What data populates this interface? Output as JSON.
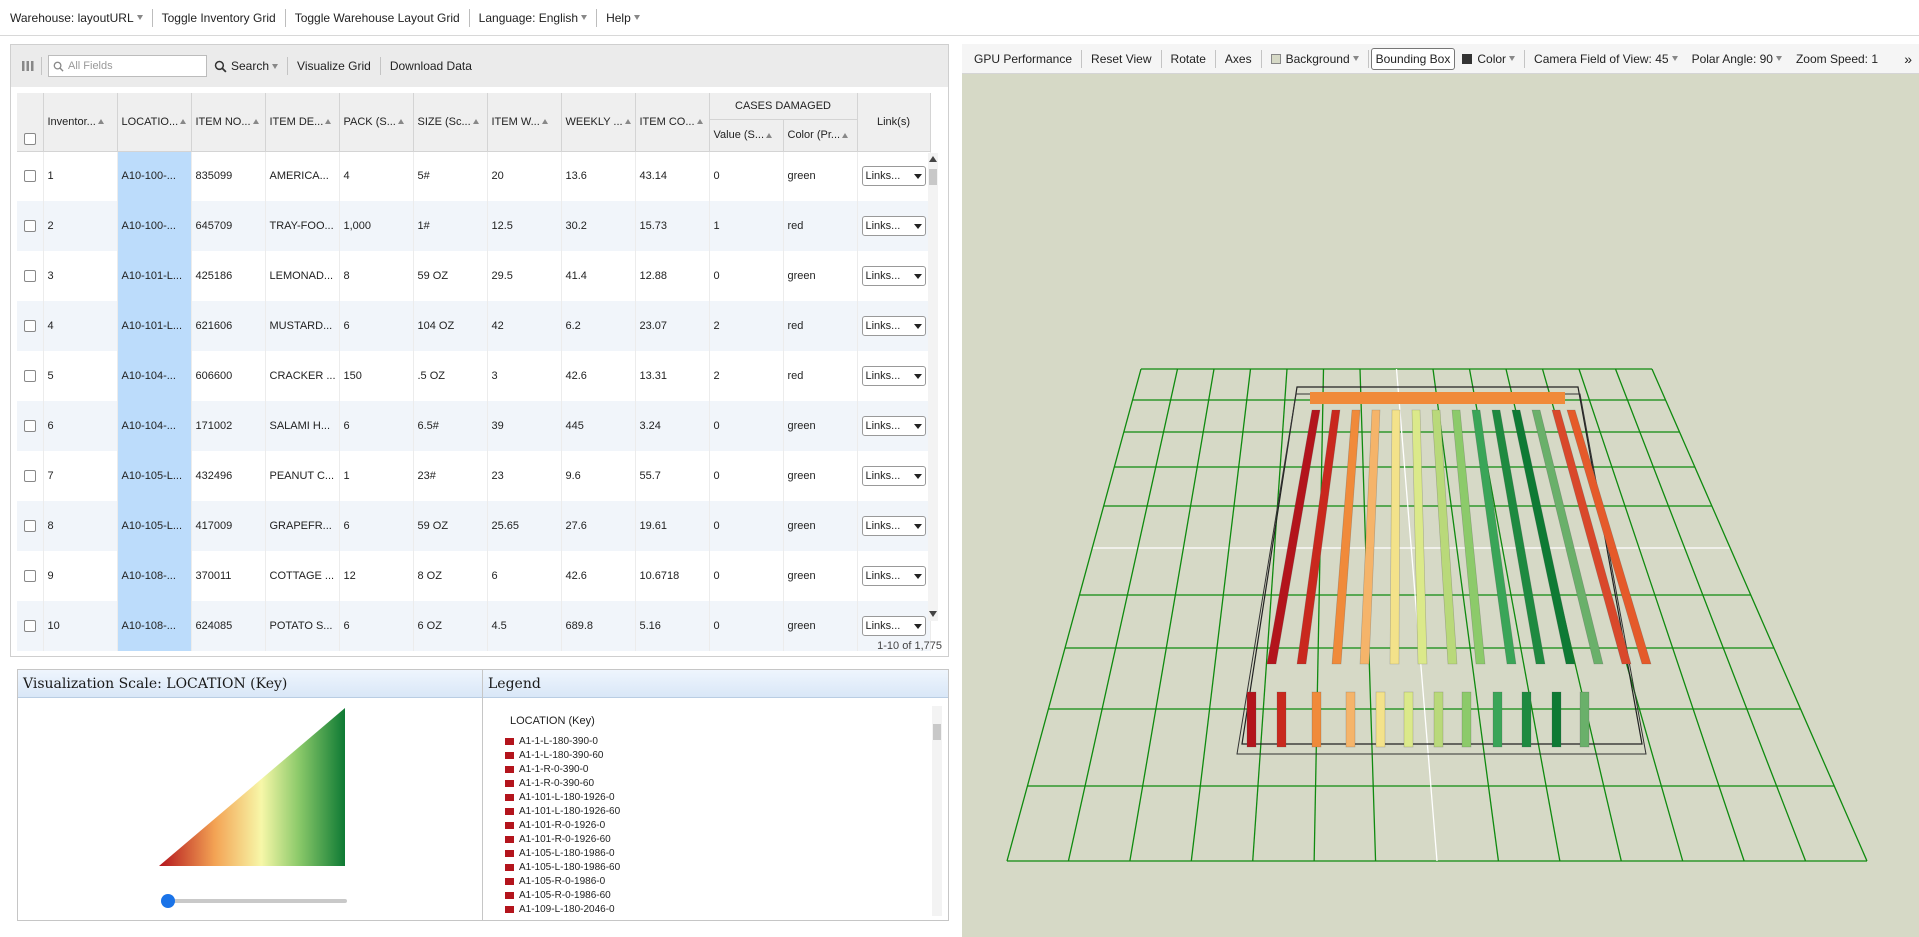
{
  "topbar": {
    "warehouse": "Warehouse: layoutURL",
    "toggle_inventory": "Toggle Inventory Grid",
    "toggle_layout": "Toggle Warehouse Layout Grid",
    "language": "Language: English",
    "help": "Help"
  },
  "grid_toolbar": {
    "search_placeholder": "All Fields",
    "search_label": "Search",
    "visualize": "Visualize Grid",
    "download": "Download Data"
  },
  "table": {
    "group_header": "CASES DAMAGED",
    "columns": [
      "Inventor...",
      "LOCATIO...",
      "ITEM NO...",
      "ITEM DE...",
      "PACK (S...",
      "SIZE (Sc...",
      "ITEM W...",
      "WEEKLY ...",
      "ITEM CO...",
      "Value (S...",
      "Color (Pr...",
      "Link(s)"
    ],
    "rows": [
      [
        "1",
        "A10-100-...",
        "835099",
        "AMERICA...",
        "4",
        "5#",
        "20",
        "13.6",
        "43.14",
        "0",
        "green",
        "Links..."
      ],
      [
        "2",
        "A10-100-...",
        "645709",
        "TRAY-FOO...",
        "1,000",
        "1#",
        "12.5",
        "30.2",
        "15.73",
        "1",
        "red",
        "Links..."
      ],
      [
        "3",
        "A10-101-L...",
        "425186",
        "LEMONAD...",
        "8",
        "59 OZ",
        "29.5",
        "41.4",
        "12.88",
        "0",
        "green",
        "Links..."
      ],
      [
        "4",
        "A10-101-L...",
        "621606",
        "MUSTARD...",
        "6",
        "104 OZ",
        "42",
        "6.2",
        "23.07",
        "2",
        "red",
        "Links..."
      ],
      [
        "5",
        "A10-104-...",
        "606600",
        "CRACKER ...",
        "150",
        ".5 OZ",
        "3",
        "42.6",
        "13.31",
        "2",
        "red",
        "Links..."
      ],
      [
        "6",
        "A10-104-...",
        "171002",
        "SALAMI H...",
        "6",
        "6.5#",
        "39",
        "445",
        "3.24",
        "0",
        "green",
        "Links..."
      ],
      [
        "7",
        "A10-105-L...",
        "432496",
        "PEANUT C...",
        "1",
        "23#",
        "23",
        "9.6",
        "55.7",
        "0",
        "green",
        "Links..."
      ],
      [
        "8",
        "A10-105-L...",
        "417009",
        "GRAPEFR...",
        "6",
        "59 OZ",
        "25.65",
        "27.6",
        "19.61",
        "0",
        "green",
        "Links..."
      ],
      [
        "9",
        "A10-108-...",
        "370011",
        "COTTAGE ...",
        "12",
        "8 OZ",
        "6",
        "42.6",
        "10.6718",
        "0",
        "green",
        "Links..."
      ],
      [
        "10",
        "A10-108-...",
        "624085",
        "POTATO S...",
        "6",
        "6 OZ",
        "4.5",
        "689.8",
        "5.16",
        "0",
        "green",
        "Links..."
      ]
    ],
    "footer": "1-10 of 1,775"
  },
  "scale_panel": {
    "title": "Visualization Scale: LOCATION (Key)"
  },
  "legend_panel": {
    "title": "Legend",
    "heading": "LOCATION (Key)",
    "items": [
      "A1-1-L-180-390-0",
      "A1-1-L-180-390-60",
      "A1-1-R-0-390-0",
      "A1-1-R-0-390-60",
      "A1-101-L-180-1926-0",
      "A1-101-L-180-1926-60",
      "A1-101-R-0-1926-0",
      "A1-101-R-0-1926-60",
      "A1-105-L-180-1986-0",
      "A1-105-L-180-1986-60",
      "A1-105-R-0-1986-0",
      "A1-105-R-0-1986-60",
      "A1-109-L-180-2046-0"
    ],
    "swatch_color": "#b3141c"
  },
  "viz_toolbar": {
    "gpu": "GPU Performance",
    "reset": "Reset View",
    "rotate": "Rotate",
    "axes": "Axes",
    "background": "Background",
    "bounding_box": "Bounding Box",
    "color": "Color",
    "fov": "Camera Field of View: 45",
    "polar": "Polar Angle: 90",
    "zoom": "Zoom Speed: 1",
    "more": "»"
  },
  "colors": {
    "grid_line": "#0f8a0f",
    "scene_bg": "#d6d9c6",
    "location_col": "#bcdcfb",
    "scale_low": "#b3141c",
    "scale_mid": "#f7f7a8",
    "scale_high": "#0e7a34"
  }
}
